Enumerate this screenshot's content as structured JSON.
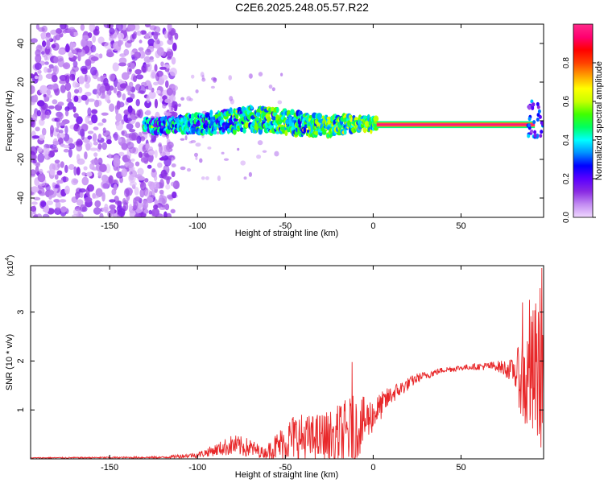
{
  "title": "C2E6.2025.248.05.57.R22",
  "chart_data": [
    {
      "type": "heatmap",
      "xlabel": "Height of straight line (km)",
      "ylabel": "Frequency (Hz)",
      "xlim": [
        -195,
        97
      ],
      "ylim": [
        -50,
        50
      ],
      "xticks": [
        -150,
        -100,
        -50,
        0,
        50
      ],
      "yticks": [
        -40,
        -20,
        0,
        20,
        40
      ],
      "colorbar": {
        "label": "Normalized spectral amplitude",
        "range": [
          0,
          1
        ],
        "ticks": [
          "0.0",
          "0.2",
          "0.4",
          "0.6",
          "0.8"
        ],
        "colors": [
          "#f0d8ff",
          "#c38cf2",
          "#8a2be2",
          "#5b00ff",
          "#0000ff",
          "#0090ff",
          "#00ffff",
          "#00ff60",
          "#40ff00",
          "#c8ff00",
          "#ffff00",
          "#ffa000",
          "#ff4000",
          "#ff0000",
          "#ff0070",
          "#ff2a8a"
        ]
      },
      "description_points": {
        "noise_region_end_km": -122,
        "signal_center_hz": [
          [
            -128,
            -3
          ],
          [
            -110,
            -2
          ],
          [
            -90,
            -1
          ],
          [
            -70,
            1
          ],
          [
            -55,
            0
          ],
          [
            -40,
            -2
          ],
          [
            -25,
            -3
          ],
          [
            -10,
            -1
          ],
          [
            0,
            -2
          ],
          [
            90,
            -2
          ]
        ],
        "strong_band": {
          "x_start": 2,
          "x_end": 92,
          "freq": -2,
          "amplitude": 0.97
        }
      }
    },
    {
      "type": "line",
      "xlabel": "Height of straight line (km)",
      "ylabel": "SNR (10 * v/v)",
      "y_multiplier": "(x10",
      "y_multiplier_exp": "4",
      "y_multiplier_close": ")",
      "xlim": [
        -195,
        97
      ],
      "ylim": [
        0,
        3.95
      ],
      "xticks": [
        -150,
        -100,
        -50,
        0,
        50
      ],
      "yticks": [
        1,
        2,
        3
      ],
      "color": "#e8282a",
      "envelope": [
        {
          "x": -195,
          "base": 0.02,
          "noise": 0.01
        },
        {
          "x": -120,
          "base": 0.03,
          "noise": 0.02
        },
        {
          "x": -100,
          "base": 0.08,
          "noise": 0.06
        },
        {
          "x": -90,
          "base": 0.18,
          "noise": 0.12
        },
        {
          "x": -80,
          "base": 0.28,
          "noise": 0.22
        },
        {
          "x": -70,
          "base": 0.22,
          "noise": 0.2
        },
        {
          "x": -62,
          "base": 0.12,
          "noise": 0.1
        },
        {
          "x": -55,
          "base": 0.25,
          "noise": 0.3
        },
        {
          "x": -45,
          "base": 0.45,
          "noise": 0.5
        },
        {
          "x": -35,
          "base": 0.4,
          "noise": 0.5
        },
        {
          "x": -25,
          "base": 0.45,
          "noise": 0.55
        },
        {
          "x": -12,
          "base": 0.55,
          "noise": 0.75
        },
        {
          "x": 0,
          "base": 0.9,
          "noise": 0.35
        },
        {
          "x": 10,
          "base": 1.3,
          "noise": 0.2
        },
        {
          "x": 25,
          "base": 1.65,
          "noise": 0.1
        },
        {
          "x": 40,
          "base": 1.82,
          "noise": 0.06
        },
        {
          "x": 55,
          "base": 1.88,
          "noise": 0.06
        },
        {
          "x": 70,
          "base": 1.9,
          "noise": 0.1
        },
        {
          "x": 80,
          "base": 1.8,
          "noise": 0.25
        },
        {
          "x": 88,
          "base": 1.5,
          "noise": 1.3
        },
        {
          "x": 97,
          "base": 2.0,
          "noise": 1.8
        }
      ],
      "spikes": [
        {
          "x": -12,
          "y": 1.98
        },
        {
          "x": 85,
          "y": 3.2
        },
        {
          "x": 89,
          "y": 3.25
        },
        {
          "x": 96,
          "y": 3.9
        }
      ]
    }
  ]
}
